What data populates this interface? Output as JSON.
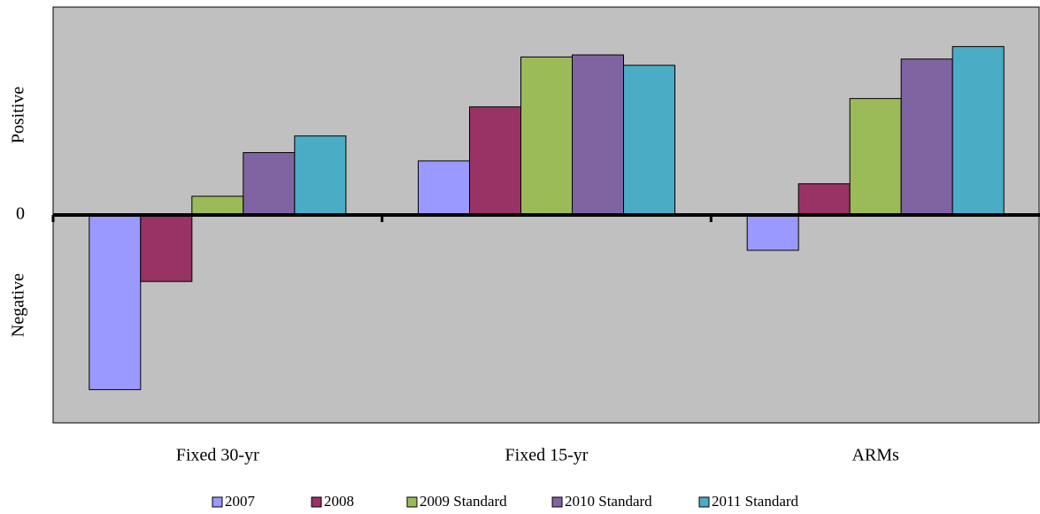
{
  "chart_data": {
    "type": "bar",
    "y_axis_labels": [
      "Positive",
      "Negative"
    ],
    "categories": [
      "Fixed 30-yr",
      "Fixed 15-yr",
      "ARMs"
    ],
    "series": [
      {
        "name": "2007",
        "color": "#9999ff",
        "values": [
          -8.4,
          2.6,
          -1.7
        ]
      },
      {
        "name": "2008",
        "color": "#993366",
        "values": [
          -3.2,
          5.2,
          1.5
        ]
      },
      {
        "name": "2009 Standard",
        "color": "#9bbb59",
        "values": [
          0.9,
          7.6,
          5.6
        ]
      },
      {
        "name": "2010 Standard",
        "color": "#8064a2",
        "values": [
          3.0,
          7.7,
          7.5
        ]
      },
      {
        "name": "2011 Standard",
        "color": "#4bacc6",
        "values": [
          3.8,
          7.2,
          8.1
        ]
      }
    ],
    "ylim": [
      -10,
      10
    ],
    "yticks": [
      0
    ],
    "legend": "bottom"
  }
}
